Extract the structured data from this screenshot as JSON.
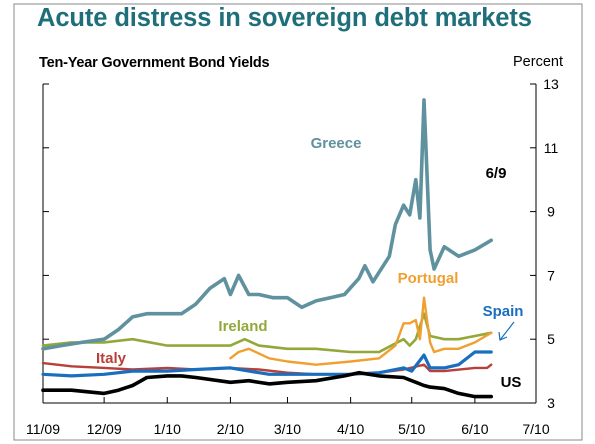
{
  "header": {
    "title": "Acute distress in sovereign debt markets",
    "subtitle": "Ten-Year Government Bond Yields",
    "unit": "Percent"
  },
  "colors": {
    "title": "#1f6f7a",
    "greece": "#5f919e",
    "portugal": "#f0a030",
    "ireland": "#92a83a",
    "spain": "#1a6ec0",
    "italy": "#b8403a",
    "us": "#000000"
  },
  "chart_data": {
    "type": "line",
    "title": "Ten-Year Government Bond Yields",
    "ylabel": "Percent",
    "xlabel": "",
    "ylim": [
      3,
      13
    ],
    "yticks": [
      3,
      5,
      7,
      9,
      11,
      13
    ],
    "xlim": [
      "2009-11-01",
      "2010-07-01"
    ],
    "xticks": [
      "11/09",
      "12/09",
      "1/10",
      "2/10",
      "3/10",
      "4/10",
      "5/10",
      "6/10",
      "7/10"
    ],
    "annotations": [
      "6/9"
    ],
    "series": [
      {
        "name": "Greece",
        "x": [
          "2009-11-01",
          "2009-11-10",
          "2009-11-20",
          "2009-12-01",
          "2009-12-08",
          "2009-12-15",
          "2009-12-22",
          "2010-01-01",
          "2010-01-08",
          "2010-01-15",
          "2010-01-22",
          "2010-01-29",
          "2010-02-01",
          "2010-02-05",
          "2010-02-10",
          "2010-02-15",
          "2010-02-22",
          "2010-03-01",
          "2010-03-08",
          "2010-03-15",
          "2010-03-22",
          "2010-03-29",
          "2010-04-05",
          "2010-04-08",
          "2010-04-12",
          "2010-04-20",
          "2010-04-23",
          "2010-04-27",
          "2010-04-30",
          "2010-05-03",
          "2010-05-05",
          "2010-05-07",
          "2010-05-10",
          "2010-05-12",
          "2010-05-17",
          "2010-05-24",
          "2010-06-01",
          "2010-06-09"
        ],
        "values": [
          4.7,
          4.8,
          4.9,
          5.0,
          5.3,
          5.7,
          5.8,
          5.8,
          5.8,
          6.1,
          6.6,
          6.9,
          6.4,
          7.0,
          6.4,
          6.4,
          6.3,
          6.3,
          6.0,
          6.2,
          6.3,
          6.4,
          6.9,
          7.3,
          6.8,
          7.6,
          8.6,
          9.2,
          8.9,
          10.0,
          8.8,
          12.5,
          7.8,
          7.2,
          7.9,
          7.6,
          7.8,
          8.1
        ]
      },
      {
        "name": "Portugal",
        "x": [
          "2010-02-01",
          "2010-02-05",
          "2010-02-10",
          "2010-02-20",
          "2010-03-01",
          "2010-03-15",
          "2010-04-01",
          "2010-04-15",
          "2010-04-23",
          "2010-04-27",
          "2010-04-30",
          "2010-05-03",
          "2010-05-05",
          "2010-05-07",
          "2010-05-10",
          "2010-05-12",
          "2010-05-17",
          "2010-05-24",
          "2010-06-01",
          "2010-06-09"
        ],
        "values": [
          4.4,
          4.6,
          4.7,
          4.4,
          4.3,
          4.2,
          4.3,
          4.4,
          4.8,
          5.5,
          5.5,
          5.6,
          5.0,
          6.3,
          4.9,
          4.6,
          4.7,
          4.7,
          4.9,
          5.2
        ]
      },
      {
        "name": "Ireland",
        "x": [
          "2009-11-01",
          "2009-11-15",
          "2009-12-01",
          "2009-12-15",
          "2010-01-01",
          "2010-01-15",
          "2010-02-01",
          "2010-02-08",
          "2010-02-15",
          "2010-03-01",
          "2010-03-15",
          "2010-04-01",
          "2010-04-15",
          "2010-04-27",
          "2010-04-30",
          "2010-05-03",
          "2010-05-07",
          "2010-05-10",
          "2010-05-17",
          "2010-05-24",
          "2010-06-01",
          "2010-06-09"
        ],
        "values": [
          4.8,
          4.9,
          4.9,
          5.0,
          4.8,
          4.8,
          4.8,
          5.0,
          4.8,
          4.7,
          4.7,
          4.6,
          4.6,
          5.0,
          4.8,
          5.0,
          5.8,
          5.1,
          5.0,
          5.0,
          5.1,
          5.2
        ]
      },
      {
        "name": "Spain",
        "x": [
          "2009-11-01",
          "2009-11-15",
          "2009-12-01",
          "2009-12-15",
          "2010-01-01",
          "2010-01-15",
          "2010-02-01",
          "2010-02-10",
          "2010-02-20",
          "2010-03-01",
          "2010-03-15",
          "2010-04-01",
          "2010-04-15",
          "2010-04-27",
          "2010-05-01",
          "2010-05-07",
          "2010-05-10",
          "2010-05-17",
          "2010-05-24",
          "2010-06-01",
          "2010-06-09"
        ],
        "values": [
          3.9,
          3.85,
          3.9,
          4.0,
          4.0,
          4.05,
          4.1,
          4.0,
          3.9,
          3.9,
          3.9,
          3.9,
          3.95,
          4.1,
          4.0,
          4.5,
          4.1,
          4.1,
          4.2,
          4.6,
          4.6
        ]
      },
      {
        "name": "Italy",
        "x": [
          "2009-11-01",
          "2009-11-15",
          "2009-12-01",
          "2009-12-15",
          "2010-01-01",
          "2010-01-15",
          "2010-02-01",
          "2010-02-15",
          "2010-03-01",
          "2010-03-15",
          "2010-04-01",
          "2010-04-15",
          "2010-04-27",
          "2010-05-07",
          "2010-05-10",
          "2010-05-17",
          "2010-06-01",
          "2010-06-07",
          "2010-06-09"
        ],
        "values": [
          4.25,
          4.15,
          4.1,
          4.05,
          4.1,
          4.05,
          4.1,
          4.05,
          3.95,
          3.9,
          3.9,
          3.95,
          4.05,
          4.2,
          4.0,
          4.0,
          4.1,
          4.1,
          4.2
        ]
      },
      {
        "name": "US",
        "x": [
          "2009-11-01",
          "2009-11-15",
          "2009-12-01",
          "2009-12-08",
          "2009-12-15",
          "2009-12-22",
          "2010-01-01",
          "2010-01-08",
          "2010-01-15",
          "2010-02-01",
          "2010-02-10",
          "2010-02-20",
          "2010-03-01",
          "2010-03-15",
          "2010-03-29",
          "2010-04-05",
          "2010-04-15",
          "2010-04-27",
          "2010-05-07",
          "2010-05-10",
          "2010-05-17",
          "2010-05-24",
          "2010-06-01",
          "2010-06-09"
        ],
        "values": [
          3.4,
          3.4,
          3.3,
          3.4,
          3.55,
          3.8,
          3.85,
          3.85,
          3.8,
          3.65,
          3.7,
          3.6,
          3.65,
          3.7,
          3.85,
          3.95,
          3.85,
          3.8,
          3.55,
          3.5,
          3.45,
          3.3,
          3.2,
          3.2
        ]
      }
    ]
  }
}
